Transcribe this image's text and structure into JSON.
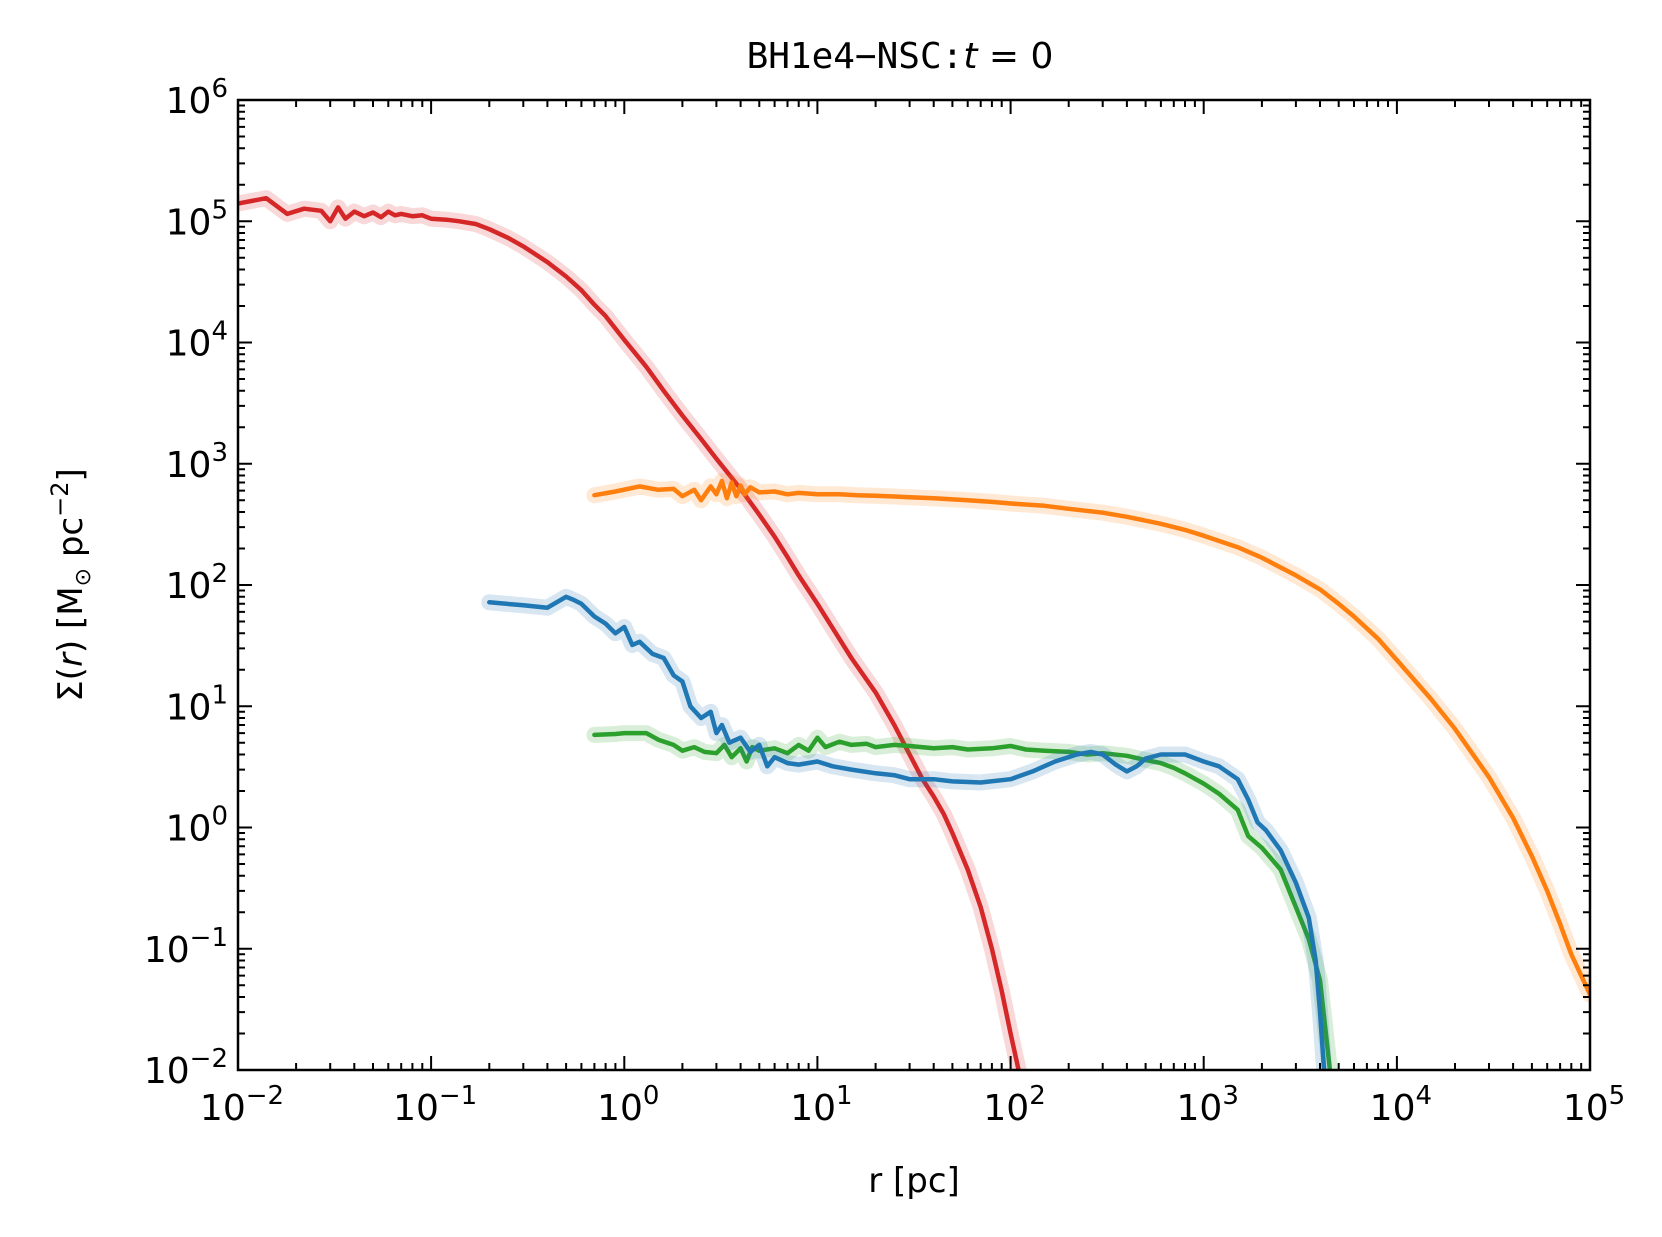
{
  "chart_data": {
    "type": "line",
    "title": {
      "mono": "BH1e4−NSC",
      "colon": ":",
      "var": "t",
      "rest": " = 0"
    },
    "xlabel": "r [pc]",
    "ylabel": {
      "sigma": "Σ(",
      "var": "r",
      "close": ")",
      "units_open": " [M",
      "sun": "⊙",
      "units_mid": " pc",
      "exp": "−2",
      "units_close": "]"
    },
    "xscale": "log",
    "yscale": "log",
    "xlim": [
      0.01,
      100000
    ],
    "ylim": [
      0.01,
      1000000
    ],
    "x_ticks": [
      {
        "value": 0.01,
        "base": "10",
        "exp": "−2"
      },
      {
        "value": 0.1,
        "base": "10",
        "exp": "−1"
      },
      {
        "value": 1,
        "base": "10",
        "exp": "0"
      },
      {
        "value": 10,
        "base": "10",
        "exp": "1"
      },
      {
        "value": 100,
        "base": "10",
        "exp": "2"
      },
      {
        "value": 1000,
        "base": "10",
        "exp": "3"
      },
      {
        "value": 10000,
        "base": "10",
        "exp": "4"
      },
      {
        "value": 100000,
        "base": "10",
        "exp": "5"
      }
    ],
    "y_ticks": [
      {
        "value": 0.01,
        "base": "10",
        "exp": "−2"
      },
      {
        "value": 0.1,
        "base": "10",
        "exp": "−1"
      },
      {
        "value": 1,
        "base": "10",
        "exp": "0"
      },
      {
        "value": 10,
        "base": "10",
        "exp": "1"
      },
      {
        "value": 100,
        "base": "10",
        "exp": "2"
      },
      {
        "value": 1000,
        "base": "10",
        "exp": "3"
      },
      {
        "value": 10000,
        "base": "10",
        "exp": "4"
      },
      {
        "value": 100000,
        "base": "10",
        "exp": "5"
      },
      {
        "value": 1000000,
        "base": "10",
        "exp": "6"
      }
    ],
    "grid": false,
    "legend": "none",
    "series": [
      {
        "color": "#d62728",
        "points": [
          [
            0.01,
            140000
          ],
          [
            0.014,
            155000
          ],
          [
            0.018,
            115000
          ],
          [
            0.022,
            127000
          ],
          [
            0.027,
            122000
          ],
          [
            0.03,
            100000
          ],
          [
            0.033,
            130000
          ],
          [
            0.036,
            105000
          ],
          [
            0.04,
            120000
          ],
          [
            0.045,
            110000
          ],
          [
            0.05,
            118000
          ],
          [
            0.055,
            108000
          ],
          [
            0.06,
            120000
          ],
          [
            0.065,
            112000
          ],
          [
            0.07,
            115000
          ],
          [
            0.08,
            110000
          ],
          [
            0.09,
            112000
          ],
          [
            0.1,
            105000
          ],
          [
            0.12,
            103000
          ],
          [
            0.14,
            100000
          ],
          [
            0.17,
            95000
          ],
          [
            0.2,
            86000
          ],
          [
            0.25,
            73000
          ],
          [
            0.3,
            62000
          ],
          [
            0.4,
            46000
          ],
          [
            0.5,
            35000
          ],
          [
            0.6,
            27000
          ],
          [
            0.7,
            20500
          ],
          [
            0.8,
            16500
          ],
          [
            1.0,
            10500
          ],
          [
            1.3,
            6300
          ],
          [
            1.6,
            4000
          ],
          [
            2.0,
            2500
          ],
          [
            2.5,
            1600
          ],
          [
            3.0,
            1100
          ],
          [
            4.0,
            620
          ],
          [
            5.0,
            380
          ],
          [
            6.0,
            250
          ],
          [
            7.0,
            170
          ],
          [
            8.0,
            120
          ],
          [
            10,
            70
          ],
          [
            12,
            44
          ],
          [
            15,
            25
          ],
          [
            20,
            13
          ],
          [
            25,
            7
          ],
          [
            30,
            4
          ],
          [
            35,
            2.5
          ],
          [
            40,
            1.8
          ],
          [
            45,
            1.3
          ],
          [
            50,
            0.9
          ],
          [
            60,
            0.45
          ],
          [
            70,
            0.22
          ],
          [
            80,
            0.1
          ],
          [
            90,
            0.045
          ],
          [
            100,
            0.02
          ],
          [
            110,
            0.01
          ]
        ]
      },
      {
        "color": "#ff7f0e",
        "points": [
          [
            0.7,
            550
          ],
          [
            0.9,
            590
          ],
          [
            1.2,
            650
          ],
          [
            1.5,
            610
          ],
          [
            1.8,
            620
          ],
          [
            2.0,
            540
          ],
          [
            2.3,
            610
          ],
          [
            2.5,
            500
          ],
          [
            2.8,
            650
          ],
          [
            3.0,
            560
          ],
          [
            3.2,
            720
          ],
          [
            3.4,
            520
          ],
          [
            3.6,
            700
          ],
          [
            3.8,
            540
          ],
          [
            4.0,
            660
          ],
          [
            4.2,
            560
          ],
          [
            4.5,
            640
          ],
          [
            5,
            580
          ],
          [
            6,
            590
          ],
          [
            7,
            560
          ],
          [
            8,
            575
          ],
          [
            10,
            560
          ],
          [
            13,
            560
          ],
          [
            16,
            550
          ],
          [
            20,
            545
          ],
          [
            30,
            530
          ],
          [
            40,
            520
          ],
          [
            60,
            500
          ],
          [
            80,
            485
          ],
          [
            100,
            470
          ],
          [
            150,
            450
          ],
          [
            200,
            425
          ],
          [
            300,
            395
          ],
          [
            400,
            365
          ],
          [
            600,
            320
          ],
          [
            800,
            285
          ],
          [
            1000,
            255
          ],
          [
            1500,
            205
          ],
          [
            2000,
            168
          ],
          [
            3000,
            120
          ],
          [
            4000,
            92
          ],
          [
            5000,
            70
          ],
          [
            6000,
            55
          ],
          [
            8000,
            36
          ],
          [
            10000,
            24
          ],
          [
            15000,
            11.5
          ],
          [
            20000,
            6.5
          ],
          [
            30000,
            2.6
          ],
          [
            40000,
            1.2
          ],
          [
            50000,
            0.58
          ],
          [
            60000,
            0.3
          ],
          [
            70000,
            0.16
          ],
          [
            80000,
            0.09
          ],
          [
            90000,
            0.06
          ],
          [
            100000,
            0.042
          ]
        ]
      },
      {
        "color": "#2ca02c",
        "points": [
          [
            0.7,
            5.8
          ],
          [
            0.9,
            5.9
          ],
          [
            1.0,
            6.0
          ],
          [
            1.3,
            6.0
          ],
          [
            1.5,
            5.3
          ],
          [
            1.8,
            4.8
          ],
          [
            2.0,
            4.3
          ],
          [
            2.3,
            4.6
          ],
          [
            2.6,
            4.2
          ],
          [
            3.0,
            4.1
          ],
          [
            3.3,
            4.8
          ],
          [
            3.6,
            3.8
          ],
          [
            4.0,
            4.5
          ],
          [
            4.3,
            3.5
          ],
          [
            4.6,
            4.6
          ],
          [
            5.0,
            4.3
          ],
          [
            6.0,
            4.5
          ],
          [
            7.0,
            4.1
          ],
          [
            8.0,
            4.8
          ],
          [
            9.0,
            4.3
          ],
          [
            10,
            5.5
          ],
          [
            11,
            4.6
          ],
          [
            13,
            5.1
          ],
          [
            15,
            4.8
          ],
          [
            18,
            4.9
          ],
          [
            20,
            4.6
          ],
          [
            25,
            4.8
          ],
          [
            30,
            4.7
          ],
          [
            40,
            4.5
          ],
          [
            50,
            4.6
          ],
          [
            60,
            4.4
          ],
          [
            80,
            4.5
          ],
          [
            100,
            4.7
          ],
          [
            120,
            4.4
          ],
          [
            150,
            4.3
          ],
          [
            200,
            4.2
          ],
          [
            250,
            4.0
          ],
          [
            300,
            4.1
          ],
          [
            400,
            3.9
          ],
          [
            500,
            3.6
          ],
          [
            600,
            3.4
          ],
          [
            700,
            3.1
          ],
          [
            800,
            2.8
          ],
          [
            1000,
            2.3
          ],
          [
            1200,
            1.9
          ],
          [
            1500,
            1.4
          ],
          [
            1700,
            0.85
          ],
          [
            2000,
            0.68
          ],
          [
            2500,
            0.45
          ],
          [
            3000,
            0.22
          ],
          [
            3500,
            0.12
          ],
          [
            4000,
            0.055
          ],
          [
            4500,
            0.01
          ]
        ]
      },
      {
        "color": "#1f77b4",
        "points": [
          [
            0.2,
            72
          ],
          [
            0.3,
            68
          ],
          [
            0.4,
            65
          ],
          [
            0.5,
            80
          ],
          [
            0.55,
            75
          ],
          [
            0.6,
            70
          ],
          [
            0.7,
            55
          ],
          [
            0.8,
            48
          ],
          [
            0.9,
            40
          ],
          [
            1.0,
            45
          ],
          [
            1.1,
            32
          ],
          [
            1.2,
            34
          ],
          [
            1.4,
            27
          ],
          [
            1.6,
            25
          ],
          [
            1.8,
            18
          ],
          [
            2.0,
            16
          ],
          [
            2.2,
            10
          ],
          [
            2.5,
            8
          ],
          [
            2.8,
            9
          ],
          [
            3.0,
            6
          ],
          [
            3.2,
            7
          ],
          [
            3.5,
            5
          ],
          [
            4.0,
            5.5
          ],
          [
            4.5,
            4.2
          ],
          [
            5,
            4.8
          ],
          [
            5.5,
            3.2
          ],
          [
            6,
            3.8
          ],
          [
            7,
            3.4
          ],
          [
            8,
            3.3
          ],
          [
            10,
            3.5
          ],
          [
            12,
            3.2
          ],
          [
            15,
            3.0
          ],
          [
            20,
            2.8
          ],
          [
            25,
            2.7
          ],
          [
            30,
            2.5
          ],
          [
            40,
            2.5
          ],
          [
            50,
            2.4
          ],
          [
            70,
            2.35
          ],
          [
            100,
            2.5
          ],
          [
            130,
            2.9
          ],
          [
            170,
            3.5
          ],
          [
            220,
            4.0
          ],
          [
            260,
            4.2
          ],
          [
            300,
            4.0
          ],
          [
            350,
            3.3
          ],
          [
            400,
            2.9
          ],
          [
            450,
            3.2
          ],
          [
            500,
            3.7
          ],
          [
            600,
            4.0
          ],
          [
            800,
            4.0
          ],
          [
            1000,
            3.5
          ],
          [
            1200,
            3.2
          ],
          [
            1500,
            2.5
          ],
          [
            1700,
            1.7
          ],
          [
            1900,
            1.1
          ],
          [
            2100,
            0.95
          ],
          [
            2500,
            0.65
          ],
          [
            3000,
            0.35
          ],
          [
            3500,
            0.18
          ],
          [
            3800,
            0.08
          ],
          [
            4000,
            0.03
          ],
          [
            4200,
            0.01
          ]
        ]
      }
    ]
  }
}
